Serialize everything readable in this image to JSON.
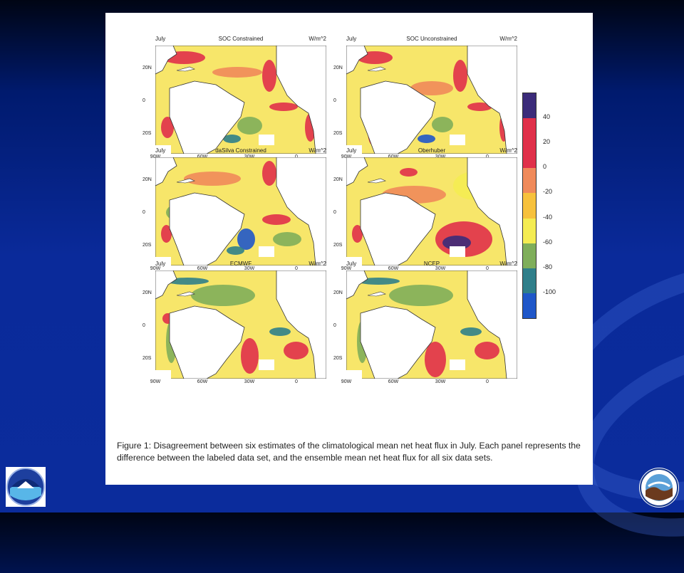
{
  "panels": [
    {
      "month": "July",
      "name": "SOC Constrained",
      "unit": "W/m^2"
    },
    {
      "month": "July",
      "name": "SOC Unconstrained",
      "unit": "W/m^2"
    },
    {
      "month": "July",
      "name": "daSilva Constrained",
      "unit": "W/m^2"
    },
    {
      "month": "July",
      "name": "Oberhuber",
      "unit": "W/m^2"
    },
    {
      "month": "July",
      "name": "ECMWF",
      "unit": "W/m^2"
    },
    {
      "month": "July",
      "name": "NCEP",
      "unit": "W/m^2"
    }
  ],
  "axes": {
    "lat_ticks": [
      "20N",
      "0",
      "20S"
    ],
    "lon_ticks": [
      "90W",
      "60W",
      "30W",
      "0"
    ]
  },
  "colorbar": {
    "labels": [
      "40",
      "20",
      "0",
      "-20",
      "-40",
      "-60",
      "-80",
      "-100"
    ],
    "colors": [
      "#3b2b7a",
      "#e0304a",
      "#f08a5a",
      "#f7c13c",
      "#f4ec52",
      "#7fae5a",
      "#2f7f8a",
      "#1f57c9"
    ]
  },
  "caption": "Figure 1: Disagreement between six estimates of the climatological mean net heat flux in July. Each panel represents the difference between the labeled data set, and the ensemble mean net heat flux for all six data sets.",
  "logos": {
    "left": "noaa-logo",
    "right": "circular-agency-seal"
  }
}
